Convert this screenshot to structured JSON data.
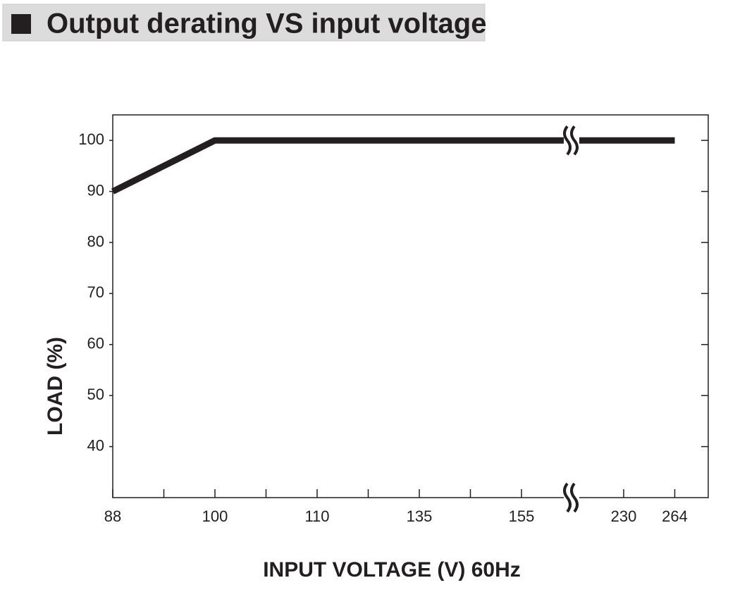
{
  "chart_data": {
    "type": "line",
    "title": "Output derating VS input voltage",
    "x_label": "INPUT VOLTAGE (V) 60Hz",
    "y_label": "LOAD (%)",
    "categories": [
      "88",
      null,
      "100",
      null,
      "110",
      null,
      "135",
      null,
      "155",
      null,
      "230",
      "264"
    ],
    "series": [
      {
        "name": "Load",
        "color": "#231f20",
        "values": [
          90,
          95,
          100,
          100,
          100,
          100,
          100,
          100,
          100,
          100,
          100,
          100
        ]
      }
    ],
    "ylim": [
      30,
      105
    ],
    "yticks": [
      40,
      50,
      60,
      70,
      80,
      90,
      100
    ]
  }
}
